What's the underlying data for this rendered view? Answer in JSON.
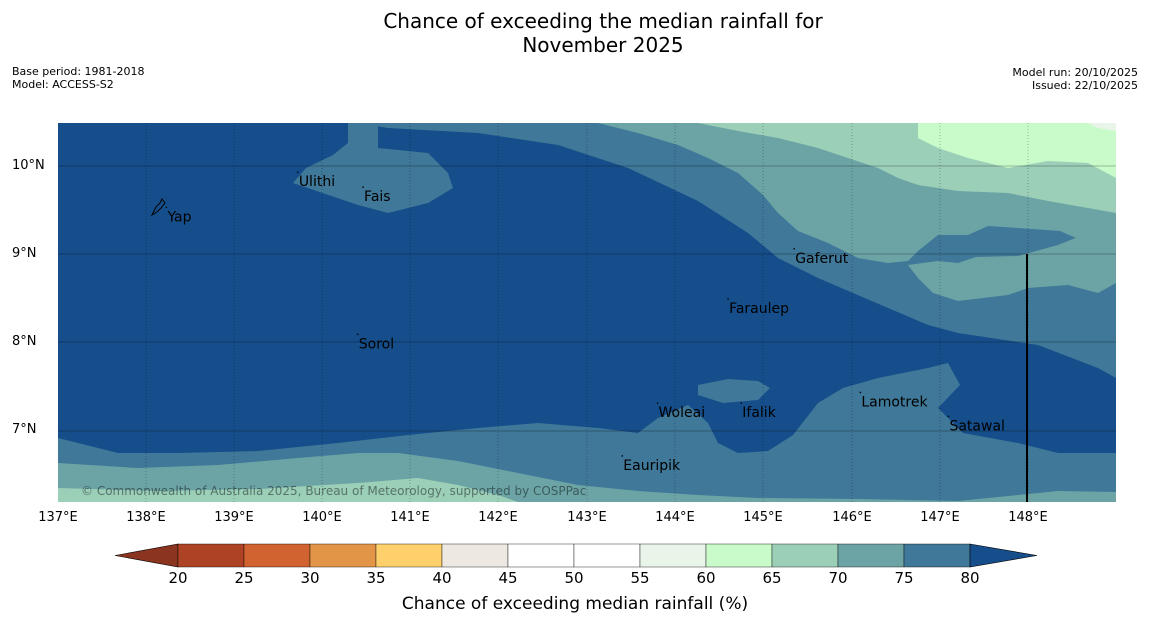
{
  "title_line1": "Chance of exceeding the median rainfall for",
  "title_line2": "November 2025",
  "meta_left": {
    "base_period": "Base period: 1981-2018",
    "model": "Model: ACCESS-S2"
  },
  "meta_right": {
    "model_run": "Model run: 20/10/2025",
    "issued": "Issued: 22/10/2025"
  },
  "map": {
    "lon_range": [
      137.0,
      149.0
    ],
    "lat_range": [
      6.2,
      10.5
    ],
    "x_ticks": [
      "137°E",
      "138°E",
      "139°E",
      "140°E",
      "141°E",
      "142°E",
      "143°E",
      "144°E",
      "145°E",
      "146°E",
      "147°E",
      "148°E"
    ],
    "y_ticks": [
      "10°N",
      "9°N",
      "8°N",
      "7°N"
    ],
    "copyright": "© Commonwealth of Australia 2025, Bureau of Meteorology, supported by COSPPac",
    "places": [
      {
        "name": "Yap",
        "lon": 138.23,
        "lat": 9.52
      },
      {
        "name": "Ulithi",
        "lon": 139.72,
        "lat": 9.92
      },
      {
        "name": "Fais",
        "lon": 140.46,
        "lat": 9.75
      },
      {
        "name": "Gaferut",
        "lon": 145.35,
        "lat": 9.05
      },
      {
        "name": "Faraulep",
        "lon": 144.6,
        "lat": 8.48
      },
      {
        "name": "Sorol",
        "lon": 140.4,
        "lat": 8.08
      },
      {
        "name": "Lamotrek",
        "lon": 146.1,
        "lat": 7.42
      },
      {
        "name": "Woleai",
        "lon": 143.8,
        "lat": 7.3
      },
      {
        "name": "Ifalik",
        "lon": 144.75,
        "lat": 7.3
      },
      {
        "name": "Satawal",
        "lon": 147.1,
        "lat": 7.15
      },
      {
        "name": "Eauripik",
        "lon": 143.4,
        "lat": 6.7
      }
    ]
  },
  "colorbar": {
    "ticks": [
      "20",
      "25",
      "30",
      "35",
      "40",
      "45",
      "50",
      "55",
      "60",
      "65",
      "70",
      "75",
      "80"
    ],
    "colors": [
      "#ad4324",
      "#d0632f",
      "#e39547",
      "#fed06b",
      "#ede9e2",
      "#ffffff",
      "#ffffff",
      "#eaf5ea",
      "#c8fbc9",
      "#9bcfb8",
      "#6ca4a5",
      "#3f7898"
    ],
    "under_color": "#8b3420",
    "over_color": "#154e8a",
    "label": "Chance of exceeding median rainfall (%)"
  }
}
